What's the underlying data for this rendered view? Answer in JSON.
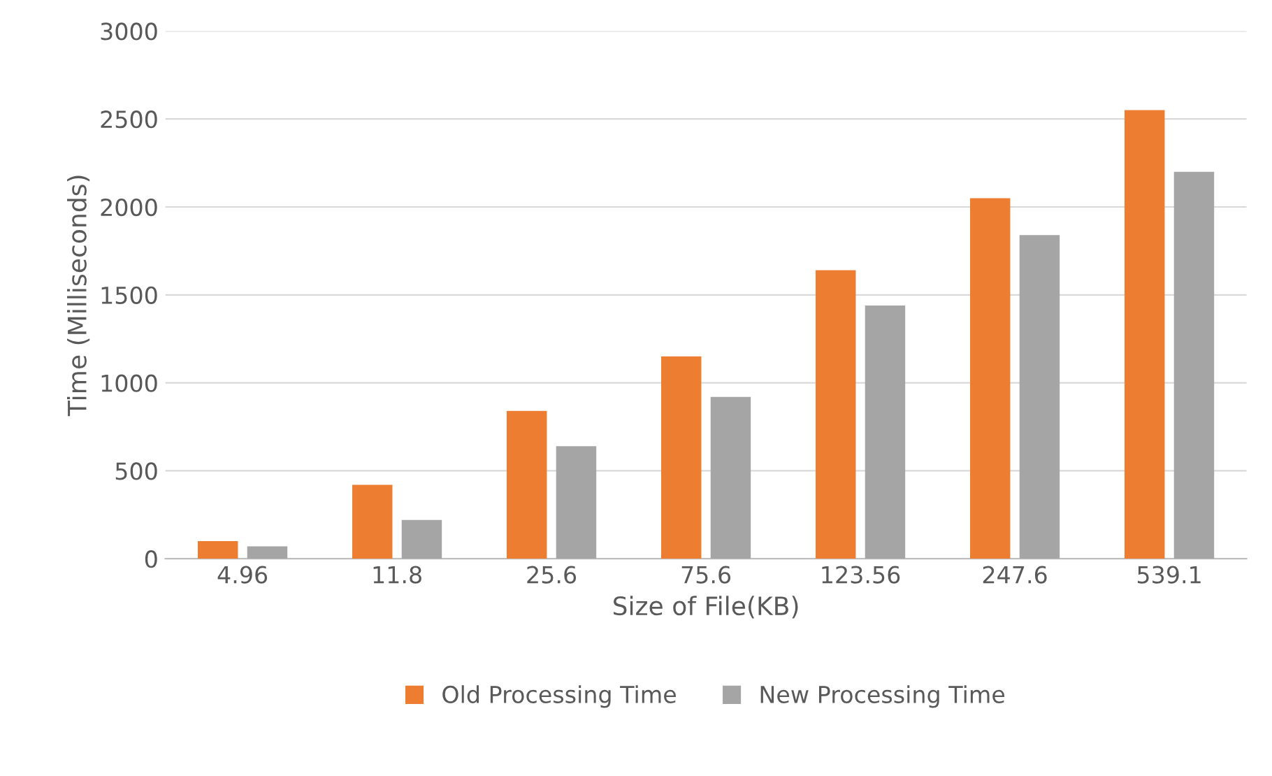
{
  "chart_data": {
    "type": "bar",
    "xlabel": "Size of File(KB)",
    "ylabel": "Time (Milliseconds)",
    "categories": [
      "4.96",
      "11.8",
      "25.6",
      "75.6",
      "123.56",
      "247.6",
      "539.1"
    ],
    "series": [
      {
        "name": "Old Processing Time",
        "color": "#ed7d31",
        "values": [
          100,
          420,
          840,
          1150,
          1640,
          2050,
          2550
        ]
      },
      {
        "name": "New Processing Time",
        "color": "#a5a5a5",
        "values": [
          70,
          220,
          640,
          920,
          1440,
          1840,
          2200
        ]
      }
    ],
    "ylim": [
      0,
      3000
    ],
    "yticks": [
      0,
      500,
      1000,
      1500,
      2000,
      2500,
      3000
    ],
    "grid": "y",
    "legend": "bottom"
  }
}
